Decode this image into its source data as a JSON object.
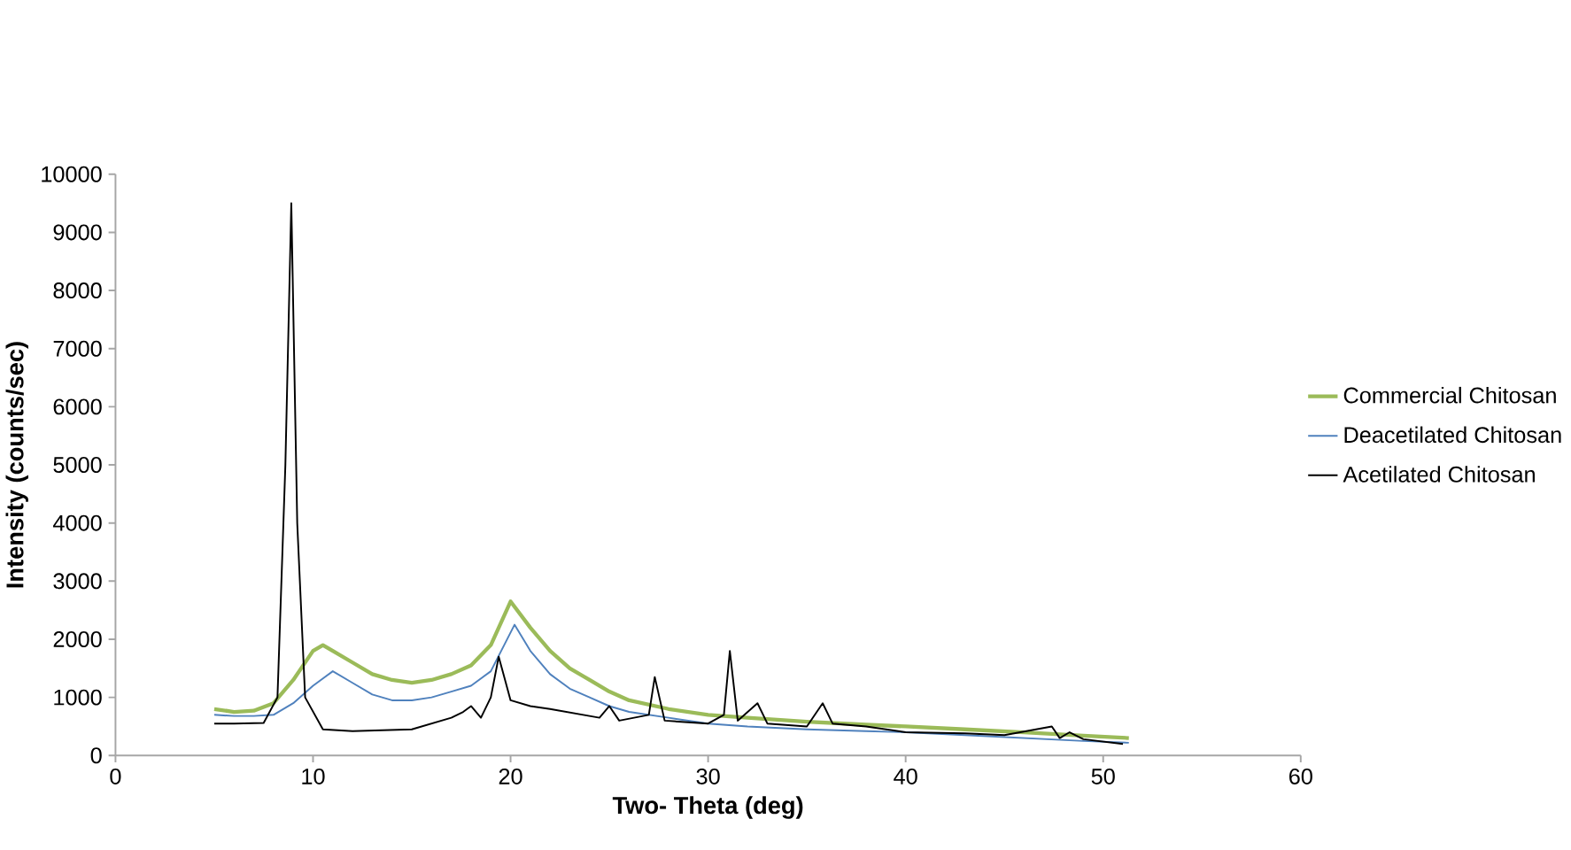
{
  "chart_data": {
    "type": "line",
    "xlabel": "Two- Theta (deg)",
    "ylabel": "Intensity (counts/sec)",
    "xlim": [
      0,
      60
    ],
    "xticks": [
      0,
      10,
      20,
      30,
      40,
      50,
      60
    ],
    "ylim": [
      0,
      10000
    ],
    "yticks": [
      0,
      1000,
      2000,
      3000,
      4000,
      5000,
      6000,
      7000,
      8000,
      9000,
      10000
    ],
    "grid": false,
    "legend": "right",
    "marker": "none",
    "line_style": "solid",
    "series": [
      {
        "name": "Commercial Chitosan",
        "color": "#9bbb59",
        "x": [
          5,
          6,
          7,
          8,
          9,
          10,
          10.5,
          11,
          12,
          13,
          14,
          15,
          16,
          17,
          18,
          19,
          20,
          21,
          22,
          23,
          24,
          25,
          26,
          28,
          30,
          32,
          35,
          38,
          40,
          43,
          46,
          49,
          51.3
        ],
        "values": [
          800,
          750,
          770,
          900,
          1300,
          1800,
          1900,
          1800,
          1600,
          1400,
          1300,
          1250,
          1300,
          1400,
          1550,
          1900,
          2650,
          2200,
          1800,
          1500,
          1300,
          1100,
          950,
          800,
          700,
          650,
          580,
          530,
          500,
          450,
          400,
          340,
          300
        ]
      },
      {
        "name": "Deacetilated Chitosan",
        "color": "#4f81bd",
        "x": [
          5,
          6,
          7,
          8,
          9,
          10,
          11,
          12,
          13,
          14,
          15,
          16,
          17,
          18,
          19,
          20.2,
          21,
          22,
          23,
          24,
          25,
          26,
          28,
          30,
          32,
          35,
          38,
          40,
          43,
          46,
          49,
          51.3
        ],
        "values": [
          700,
          680,
          680,
          700,
          900,
          1200,
          1450,
          1250,
          1050,
          950,
          950,
          1000,
          1100,
          1200,
          1450,
          2250,
          1800,
          1400,
          1150,
          1000,
          850,
          750,
          650,
          550,
          500,
          450,
          420,
          400,
          350,
          300,
          250,
          220
        ]
      },
      {
        "name": "Acetilated Chitosan",
        "color": "#000000",
        "x": [
          5,
          6,
          7.5,
          8.2,
          8.6,
          8.9,
          9.2,
          9.6,
          10.5,
          12,
          15,
          17,
          17.6,
          18,
          18.5,
          19,
          19.4,
          20,
          21,
          22,
          24.5,
          25,
          25.5,
          27,
          27.3,
          27.8,
          30,
          30.8,
          31.1,
          31.5,
          32.5,
          33,
          35,
          35.8,
          36.3,
          38,
          40,
          43,
          45,
          47.4,
          47.8,
          48.3,
          49,
          51
        ],
        "values": [
          550,
          550,
          560,
          1000,
          5000,
          9500,
          4000,
          1000,
          450,
          420,
          450,
          650,
          750,
          850,
          650,
          1000,
          1700,
          950,
          850,
          800,
          650,
          850,
          600,
          700,
          1350,
          600,
          550,
          700,
          1800,
          600,
          900,
          550,
          500,
          900,
          550,
          500,
          400,
          380,
          350,
          500,
          300,
          400,
          280,
          200
        ]
      }
    ]
  }
}
